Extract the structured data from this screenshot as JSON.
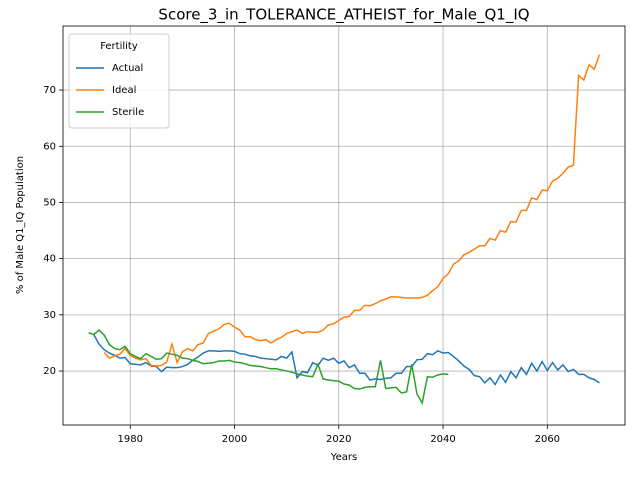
{
  "chart_data": {
    "type": "line",
    "title": "Score_3_in_TOLERANCE_ATHEIST_for_Male_Q1_IQ",
    "x_label": "Years",
    "y_label": "% of Male Q1_IQ Population",
    "legend_title": "Fertility",
    "legend_position": "upper left",
    "grid": true,
    "xlim": [
      1967.1,
      2074.9
    ],
    "ylim": [
      10.4,
      81.4
    ],
    "xticks": [
      1980,
      2000,
      2020,
      2040,
      2060
    ],
    "yticks": [
      20,
      30,
      40,
      50,
      60,
      70
    ],
    "x": [
      1972,
      1973,
      1974,
      1975,
      1976,
      1977,
      1978,
      1979,
      1980,
      1981,
      1982,
      1983,
      1984,
      1985,
      1986,
      1987,
      1988,
      1989,
      1990,
      1991,
      1992,
      1993,
      1994,
      1995,
      1996,
      1997,
      1998,
      1999,
      2000,
      2001,
      2002,
      2003,
      2004,
      2005,
      2006,
      2007,
      2008,
      2009,
      2010,
      2011,
      2012,
      2013,
      2014,
      2015,
      2016,
      2017,
      2018,
      2019,
      2020,
      2021,
      2022,
      2023,
      2024,
      2025,
      2026,
      2027,
      2028,
      2029,
      2030,
      2031,
      2032,
      2033,
      2034,
      2035,
      2036,
      2037,
      2038,
      2039,
      2040,
      2041,
      2042,
      2043,
      2044,
      2045,
      2046,
      2047,
      2048,
      2049,
      2050,
      2051,
      2052,
      2053,
      2054,
      2055,
      2056,
      2057,
      2058,
      2059,
      2060,
      2061,
      2062,
      2063,
      2064,
      2065,
      2066,
      2067,
      2068,
      2069,
      2070
    ],
    "series": [
      {
        "name": "Actual",
        "color": "#1f77b4",
        "values": [
          null,
          26.5,
          24.8,
          23.8,
          23.2,
          22.8,
          22.3,
          22.4,
          21.3,
          21.2,
          21.1,
          21.5,
          20.9,
          20.8,
          19.9,
          20.7,
          20.6,
          20.6,
          20.8,
          21.2,
          21.9,
          22.5,
          23.2,
          23.6,
          23.6,
          23.5,
          23.6,
          23.6,
          23.5,
          23.1,
          23.0,
          22.7,
          22.6,
          22.3,
          22.2,
          22.1,
          22.0,
          22.6,
          22.3,
          23.4,
          18.8,
          19.9,
          19.7,
          21.5,
          21.0,
          22.3,
          21.9,
          22.3,
          21.4,
          21.8,
          20.6,
          21.1,
          19.6,
          19.6,
          18.4,
          18.6,
          18.5,
          18.7,
          18.8,
          19.6,
          19.6,
          20.8,
          20.8,
          22.0,
          22.1,
          23.1,
          22.9,
          23.6,
          23.2,
          23.3,
          22.6,
          21.8,
          20.9,
          20.3,
          19.2,
          19.0,
          17.9,
          18.8,
          17.6,
          19.3,
          18.0,
          19.9,
          18.8,
          20.6,
          19.4,
          21.4,
          20.0,
          21.7,
          20.1,
          21.5,
          20.2,
          21.1,
          19.9,
          20.3,
          19.4,
          19.4,
          18.8,
          18.5,
          17.9
        ]
      },
      {
        "name": "Ideal",
        "color": "#ff7f0e",
        "values": [
          null,
          null,
          null,
          23.3,
          22.3,
          22.7,
          23.0,
          24.0,
          22.8,
          22.3,
          22.0,
          22.2,
          21.0,
          20.9,
          21.0,
          21.6,
          24.8,
          21.5,
          23.4,
          24.0,
          23.6,
          24.7,
          25.0,
          26.7,
          27.1,
          27.5,
          28.3,
          28.5,
          27.8,
          27.3,
          26.1,
          26.1,
          25.6,
          25.4,
          25.6,
          25.0,
          25.6,
          26.0,
          26.7,
          27.0,
          27.3,
          26.7,
          27.0,
          26.9,
          26.9,
          27.3,
          28.2,
          28.4,
          29.0,
          29.6,
          29.7,
          30.8,
          30.8,
          31.7,
          31.6,
          32.0,
          32.5,
          32.8,
          33.2,
          33.2,
          33.1,
          33.0,
          33.0,
          33.0,
          33.1,
          33.5,
          34.3,
          35.0,
          36.5,
          37.3,
          39.0,
          39.6,
          40.7,
          41.1,
          41.7,
          42.3,
          42.3,
          43.6,
          43.3,
          45.0,
          44.7,
          46.6,
          46.5,
          48.6,
          48.6,
          50.8,
          50.5,
          52.2,
          52.1,
          53.8,
          54.3,
          55.2,
          56.3,
          56.6,
          72.6,
          71.8,
          74.5,
          73.7,
          76.3
        ]
      },
      {
        "name": "Sterile",
        "color": "#2ca02c",
        "values": [
          26.8,
          26.5,
          27.3,
          26.4,
          24.7,
          24.0,
          23.8,
          24.4,
          23.1,
          22.6,
          22.2,
          23.1,
          22.6,
          22.1,
          22.2,
          23.2,
          23.0,
          22.8,
          22.3,
          22.2,
          21.9,
          21.7,
          21.3,
          21.4,
          21.5,
          21.8,
          21.8,
          21.9,
          21.6,
          21.5,
          21.3,
          21.0,
          20.9,
          20.8,
          20.6,
          20.4,
          20.4,
          20.2,
          20.0,
          19.8,
          19.5,
          19.3,
          19.1,
          19.0,
          21.2,
          18.6,
          18.4,
          18.3,
          18.2,
          17.7,
          17.5,
          16.9,
          16.8,
          17.1,
          17.2,
          17.2,
          21.9,
          16.9,
          17.0,
          17.1,
          16.1,
          16.3,
          21.2,
          15.9,
          14.3,
          19.0,
          18.9,
          19.3,
          19.5,
          19.4,
          null,
          null,
          null,
          null,
          null,
          null,
          null,
          null,
          null,
          null,
          null,
          null,
          null,
          null,
          null,
          null,
          null,
          null,
          null,
          null,
          null,
          null,
          null,
          null,
          null,
          null,
          null,
          null,
          null
        ]
      }
    ]
  }
}
